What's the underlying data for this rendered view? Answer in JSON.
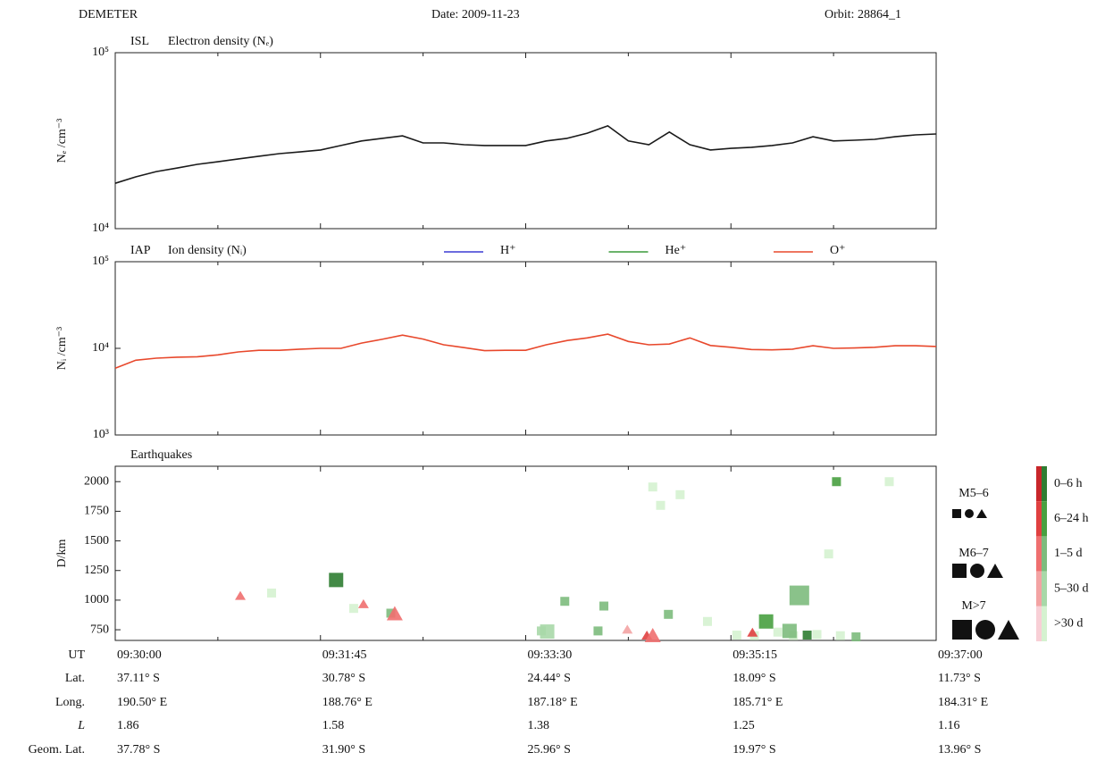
{
  "header": {
    "mission": "DEMETER",
    "date": "Date:  2009-11-23",
    "orbit": "Orbit:  28864_1"
  },
  "chart_data": [
    {
      "type": "line",
      "instrument": "ISL",
      "title": "Electron density (Nₑ)",
      "ylabel": "Nₑ /cm⁻³",
      "log_y": true,
      "ylim": [
        10000,
        100000
      ],
      "yticks": [
        {
          "value": 10000,
          "label": "10⁴"
        },
        {
          "value": 100000,
          "label": "10⁵"
        }
      ],
      "color": "#1a1a1a",
      "values": [
        18100,
        19700,
        21100,
        22100,
        23200,
        24000,
        24900,
        25800,
        26700,
        27300,
        28000,
        29700,
        31500,
        32600,
        33700,
        30700,
        30700,
        30000,
        29700,
        29700,
        29700,
        31500,
        32600,
        34900,
        38400,
        31500,
        30000,
        35400,
        30000,
        28000,
        28600,
        29000,
        29700,
        30700,
        33300,
        31500,
        31800,
        32200,
        33300,
        34100,
        34500
      ]
    },
    {
      "type": "line",
      "instrument": "IAP",
      "title": "Ion density (Nᵢ)",
      "ylabel": "Nᵢ /cm⁻³",
      "log_y": true,
      "ylim": [
        1000,
        100000
      ],
      "yticks": [
        {
          "value": 1000,
          "label": "10³"
        },
        {
          "value": 10000,
          "label": "10⁴"
        },
        {
          "value": 100000,
          "label": "10⁵"
        }
      ],
      "series": [
        {
          "name": "H⁺",
          "color": "#3b3bd4",
          "values": []
        },
        {
          "name": "He⁺",
          "color": "#3a9a3a",
          "values": []
        },
        {
          "name": "O⁺",
          "color": "#e8482c",
          "values": [
            5900,
            7300,
            7700,
            7900,
            8000,
            8400,
            9100,
            9500,
            9500,
            9800,
            10000,
            10000,
            11500,
            12700,
            14200,
            12800,
            11000,
            10200,
            9400,
            9500,
            9500,
            11000,
            12300,
            13200,
            14600,
            12000,
            11000,
            11200,
            13200,
            10800,
            10300,
            9700,
            9600,
            9800,
            10700,
            10000,
            10100,
            10300,
            10700,
            10700,
            10500
          ]
        }
      ]
    },
    {
      "type": "scatter",
      "title": "Earthquakes",
      "ylabel": "D/km",
      "ylim": [
        660,
        2130
      ],
      "yticks": [
        750,
        1000,
        1250,
        1500,
        1750,
        2000
      ],
      "shapes": [
        "square",
        "circle",
        "triangle"
      ],
      "magnitude_legend": [
        "M5–6",
        "M6–7",
        "M>7"
      ],
      "period_legend": [
        {
          "label": "0–6 h",
          "colors": [
            "#c8262a",
            "#2f7d32"
          ]
        },
        {
          "label": "6–24 h",
          "colors": [
            "#e04040",
            "#48a040"
          ]
        },
        {
          "label": "1–5 d",
          "colors": [
            "#ef6f6f",
            "#7dbb7d"
          ]
        },
        {
          "label": "5–30 d",
          "colors": [
            "#f3a3a3",
            "#a8d8a8"
          ]
        },
        {
          "label": ">30 d",
          "colors": [
            "#f8cfd6",
            "#d5f2d0"
          ]
        }
      ],
      "points": [
        {
          "x": "09:31:04",
          "y": 1040,
          "shape": "triangle",
          "magnitude": "M5–6",
          "color": "#ef6f6f"
        },
        {
          "x": "09:31:20",
          "y": 1060,
          "shape": "square",
          "magnitude": "M5–6",
          "color": "#d5f2d0"
        },
        {
          "x": "09:31:53",
          "y": 1170,
          "shape": "square",
          "magnitude": "M6–7",
          "color": "#2f7d32"
        },
        {
          "x": "09:32:07",
          "y": 970,
          "shape": "triangle",
          "magnitude": "M5–6",
          "color": "#ef6f6f"
        },
        {
          "x": "09:32:02",
          "y": 930,
          "shape": "square",
          "magnitude": "M5–6",
          "color": "#d5f2d0"
        },
        {
          "x": "09:32:21",
          "y": 890,
          "shape": "square",
          "magnitude": "M5–6",
          "color": "#7dbb7d"
        },
        {
          "x": "09:32:23",
          "y": 890,
          "shape": "triangle",
          "magnitude": "M6–7",
          "color": "#ef6f6f"
        },
        {
          "x": "09:33:38",
          "y": 740,
          "shape": "square",
          "magnitude": "M5–6",
          "color": "#a8d8a8"
        },
        {
          "x": "09:33:41",
          "y": 735,
          "shape": "square",
          "magnitude": "M6–7",
          "color": "#a8d8a8"
        },
        {
          "x": "09:33:50",
          "y": 990,
          "shape": "square",
          "magnitude": "M5–6",
          "color": "#7dbb7d"
        },
        {
          "x": "09:34:07",
          "y": 740,
          "shape": "square",
          "magnitude": "M5–6",
          "color": "#7dbb7d"
        },
        {
          "x": "09:34:10",
          "y": 950,
          "shape": "square",
          "magnitude": "M5–6",
          "color": "#7dbb7d"
        },
        {
          "x": "09:34:22",
          "y": 755,
          "shape": "triangle",
          "magnitude": "M5–6",
          "color": "#f3a3a3"
        },
        {
          "x": "09:34:32",
          "y": 705,
          "shape": "triangle",
          "magnitude": "M5–6",
          "color": "#e04040"
        },
        {
          "x": "09:34:35",
          "y": 705,
          "shape": "triangle",
          "magnitude": "M6–7",
          "color": "#ef6f6f"
        },
        {
          "x": "09:34:35",
          "y": 1955,
          "shape": "square",
          "magnitude": "M5–6",
          "color": "#d5f2d0"
        },
        {
          "x": "09:34:39",
          "y": 1800,
          "shape": "square",
          "magnitude": "M5–6",
          "color": "#d5f2d0"
        },
        {
          "x": "09:34:49",
          "y": 1890,
          "shape": "square",
          "magnitude": "M5–6",
          "color": "#d5f2d0"
        },
        {
          "x": "09:34:43",
          "y": 880,
          "shape": "square",
          "magnitude": "M5–6",
          "color": "#7dbb7d"
        },
        {
          "x": "09:35:03",
          "y": 820,
          "shape": "square",
          "magnitude": "M5–6",
          "color": "#d5f2d0"
        },
        {
          "x": "09:35:18",
          "y": 705,
          "shape": "square",
          "magnitude": "M5–6",
          "color": "#d5f2d0"
        },
        {
          "x": "09:35:27",
          "y": 700,
          "shape": "square",
          "magnitude": "M5–6",
          "color": "#d5f2d0"
        },
        {
          "x": "09:35:39",
          "y": 730,
          "shape": "square",
          "magnitude": "M5–6",
          "color": "#d5f2d0"
        },
        {
          "x": "09:35:47",
          "y": 700,
          "shape": "square",
          "magnitude": "M5–6",
          "color": "#d5f2d0"
        },
        {
          "x": "09:35:59",
          "y": 710,
          "shape": "square",
          "magnitude": "M5–6",
          "color": "#d5f2d0"
        },
        {
          "x": "09:36:11",
          "y": 700,
          "shape": "square",
          "magnitude": "M5–6",
          "color": "#d5f2d0"
        },
        {
          "x": "09:35:26",
          "y": 730,
          "shape": "triangle",
          "magnitude": "M5–6",
          "color": "#e04040"
        },
        {
          "x": "09:35:45",
          "y": 740,
          "shape": "square",
          "magnitude": "M6–7",
          "color": "#7dbb7d"
        },
        {
          "x": "09:35:33",
          "y": 820,
          "shape": "square",
          "magnitude": "M6–7",
          "color": "#48a040"
        },
        {
          "x": "09:35:50",
          "y": 1040,
          "shape": "square",
          "magnitude": "M>7",
          "color": "#7dbb7d"
        },
        {
          "x": "09:35:54",
          "y": 705,
          "shape": "square",
          "magnitude": "M5–6",
          "color": "#2f7d32"
        },
        {
          "x": "09:36:05",
          "y": 1390,
          "shape": "square",
          "magnitude": "M5–6",
          "color": "#d5f2d0"
        },
        {
          "x": "09:36:09",
          "y": 2000,
          "shape": "square",
          "magnitude": "M5–6",
          "color": "#48a040"
        },
        {
          "x": "09:36:36",
          "y": 2000,
          "shape": "square",
          "magnitude": "M5–6",
          "color": "#d5f2d0"
        },
        {
          "x": "09:36:19",
          "y": 690,
          "shape": "square",
          "magnitude": "M5–6",
          "color": "#7dbb7d"
        }
      ]
    }
  ],
  "orbit_table": {
    "rows": [
      {
        "label": "UT",
        "values": [
          "09:30:00",
          "09:31:45",
          "09:33:30",
          "09:35:15",
          "09:37:00"
        ]
      },
      {
        "label": "Lat.",
        "values": [
          "37.11° S",
          "30.78° S",
          "24.44° S",
          "18.09° S",
          "11.73° S"
        ]
      },
      {
        "label": "Long.",
        "values": [
          "190.50° E",
          "188.76° E",
          "187.18° E",
          "185.71° E",
          "184.31° E"
        ]
      },
      {
        "label": "L",
        "values": [
          "1.86",
          "1.58",
          "1.38",
          "1.25",
          "1.16"
        ]
      },
      {
        "label": "Geom. Lat.",
        "values": [
          "37.78° S",
          "31.90° S",
          "25.96° S",
          "19.97° S",
          "13.96° S"
        ]
      }
    ]
  }
}
